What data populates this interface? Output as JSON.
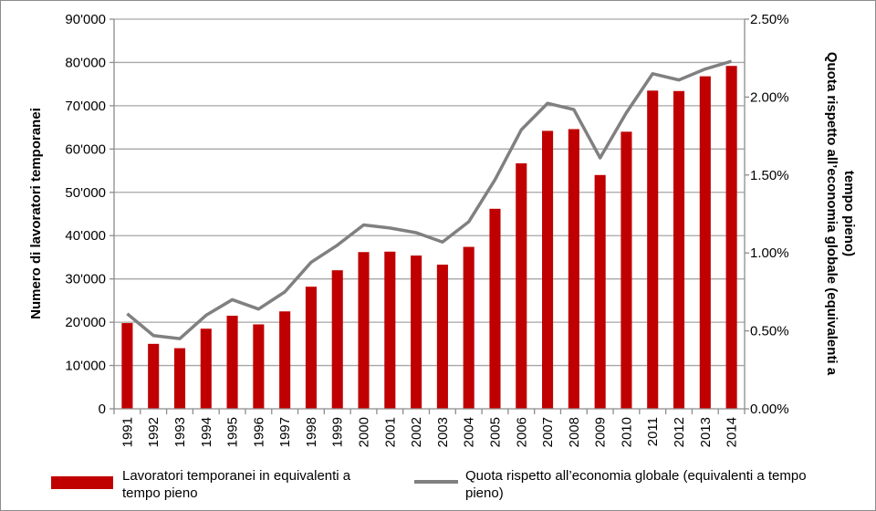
{
  "chart_data": {
    "type": "bar+line",
    "categories": [
      "1991",
      "1992",
      "1993",
      "1994",
      "1995",
      "1996",
      "1997",
      "1998",
      "1999",
      "2000",
      "2001",
      "2002",
      "2003",
      "2004",
      "2005",
      "2006",
      "2007",
      "2008",
      "2009",
      "2010",
      "2011",
      "2012",
      "2013",
      "2014"
    ],
    "series": [
      {
        "name": "Lavoratori temporanei in equivalenti a tempo pieno",
        "type": "bar",
        "axis": "left",
        "color": "#c00000",
        "values": [
          19800,
          15000,
          14000,
          18500,
          21500,
          19500,
          22500,
          28200,
          32000,
          36200,
          36300,
          35400,
          33300,
          37400,
          46200,
          56700,
          64200,
          64600,
          54000,
          64000,
          73500,
          73400,
          76800,
          79200
        ]
      },
      {
        "name": "Quota rispetto all’economia globale (equivalenti a tempo pieno)",
        "type": "line",
        "axis": "right",
        "color": "#808080",
        "values": [
          0.61,
          0.47,
          0.45,
          0.6,
          0.7,
          0.64,
          0.75,
          0.94,
          1.05,
          1.18,
          1.16,
          1.13,
          1.07,
          1.2,
          1.47,
          1.79,
          1.96,
          1.92,
          1.61,
          1.9,
          2.15,
          2.11,
          2.18,
          2.23
        ]
      }
    ],
    "y_left": {
      "label": "Numero di lavoratori temporanei",
      "ylim": [
        0,
        90000
      ],
      "ticks": [
        "0",
        "10'000",
        "20'000",
        "30'000",
        "40'000",
        "50'000",
        "60'000",
        "70'000",
        "80'000",
        "90'000"
      ]
    },
    "y_right": {
      "label_line1": "Quota rispetto all’economia globale (equivalenti a",
      "label_line2": "tempo pieno)",
      "ylim": [
        0,
        2.5
      ],
      "ticks": [
        "0.00%",
        "0.50%",
        "1.00%",
        "1.50%",
        "2.00%",
        "2.50%"
      ]
    },
    "grid": true,
    "legend_position": "bottom"
  },
  "legend": {
    "bar_label": "Lavoratori temporanei in equivalenti a tempo pieno",
    "line_label": "Quota rispetto all’economia globale (equivalenti a tempo pieno)"
  }
}
